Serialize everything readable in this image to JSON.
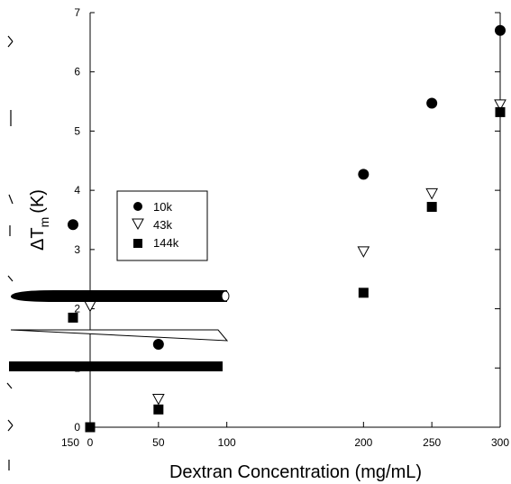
{
  "chart_data": {
    "type": "scatter",
    "title": "",
    "xlabel": "Dextran Concentration (mg/mL)",
    "ylabel": "ΔT",
    "ylabel_subscript": "m",
    "ylabel_unit": "(K)",
    "xlim": [
      0,
      300
    ],
    "ylim": [
      0,
      7
    ],
    "xticks": [
      0,
      50,
      100,
      200,
      250,
      300
    ],
    "yticks": [
      0,
      1,
      2,
      3,
      4,
      5,
      6,
      7
    ],
    "ytick_labels": [
      "0",
      "1",
      "2",
      "3",
      "4",
      "5",
      "6",
      "7"
    ],
    "stray_labels": [
      {
        "text": "150"
      }
    ],
    "legend": "inside-left",
    "grid": false,
    "series": [
      {
        "name": "10k",
        "marker": "circle",
        "points": [
          [
            50,
            1.4
          ],
          [
            200,
            4.27
          ],
          [
            250,
            5.47
          ],
          [
            300,
            6.7
          ]
        ]
      },
      {
        "name": "43k",
        "marker": "triangle-down",
        "points": [
          [
            0,
            2.05
          ],
          [
            50,
            0.48
          ],
          [
            200,
            2.97
          ],
          [
            250,
            3.95
          ],
          [
            300,
            5.45
          ]
        ]
      },
      {
        "name": "144k",
        "marker": "square",
        "points": [
          [
            0,
            0.0
          ],
          [
            50,
            0.3
          ],
          [
            200,
            2.27
          ],
          [
            250,
            3.72
          ],
          [
            300,
            5.32
          ]
        ]
      }
    ],
    "outside_points": [
      {
        "series": "10k",
        "marker": "circle",
        "value": 3.42
      },
      {
        "series": "144k",
        "marker": "square",
        "value": 1.85
      }
    ]
  }
}
